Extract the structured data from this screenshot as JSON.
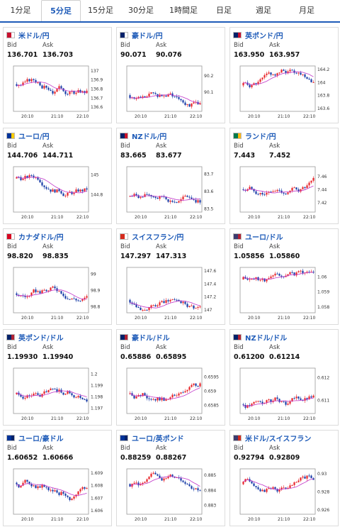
{
  "tabs": [
    "1分足",
    "5分足",
    "15分足",
    "30分足",
    "1時間足",
    "日足",
    "週足",
    "月足"
  ],
  "active_tab": 1,
  "labels": {
    "bid": "Bid",
    "ask": "Ask"
  },
  "times": [
    "20:10",
    "21:10",
    "22:10"
  ],
  "cards": [
    {
      "pair": "米ドル/円",
      "bid": "136.701",
      "ask": "136.703",
      "flag": [
        "#c8102e",
        "#ffffff"
      ],
      "ticks": [
        "137",
        "136.9",
        "136.8",
        "136.7",
        "136.6"
      ],
      "ylim": [
        136.55,
        137.05
      ],
      "start": 136.85
    },
    {
      "pair": "豪ドル/円",
      "bid": "90.071",
      "ask": "90.076",
      "flag": [
        "#012169",
        "#ffffff"
      ],
      "ticks": [
        "90.2",
        "90.1"
      ],
      "ylim": [
        89.98,
        90.26
      ],
      "start": 90.08
    },
    {
      "pair": "英ポンド/円",
      "bid": "163.950",
      "ask": "163.957",
      "flag": [
        "#012169",
        "#c8102e"
      ],
      "ticks": [
        "164.2",
        "164",
        "163.8",
        "163.6"
      ],
      "ylim": [
        163.55,
        164.25
      ],
      "start": 163.95
    },
    {
      "pair": "ユーロ/円",
      "bid": "144.706",
      "ask": "144.711",
      "flag": [
        "#003399",
        "#ffcc00"
      ],
      "ticks": [
        "145",
        "144.8"
      ],
      "ylim": [
        144.62,
        145.08
      ],
      "start": 144.96
    },
    {
      "pair": "NZドル/円",
      "bid": "83.665",
      "ask": "83.677",
      "flag": [
        "#012169",
        "#cc142b"
      ],
      "ticks": [
        "83.7",
        "83.6",
        "83.5"
      ],
      "ylim": [
        83.48,
        83.74
      ],
      "start": 83.57
    },
    {
      "pair": "ランド/円",
      "bid": "7.443",
      "ask": "7.452",
      "flag": [
        "#007a4d",
        "#ffb612"
      ],
      "ticks": [
        "7.46",
        "7.44",
        "7.42"
      ],
      "ylim": [
        7.405,
        7.475
      ],
      "start": 7.44
    },
    {
      "pair": "カナダドル/円",
      "bid": "98.820",
      "ask": "98.835",
      "flag": [
        "#d80621",
        "#ffffff"
      ],
      "ticks": [
        "99",
        "98.9",
        "98.8"
      ],
      "ylim": [
        98.76,
        99.04
      ],
      "start": 98.88
    },
    {
      "pair": "スイスフラン/円",
      "bid": "147.297",
      "ask": "147.313",
      "flag": [
        "#d52b1e",
        "#ffffff"
      ],
      "ticks": [
        "147.6",
        "147.4",
        "147.2",
        "147"
      ],
      "ylim": [
        146.95,
        147.65
      ],
      "start": 147.15
    },
    {
      "pair": "ユーロ/ドル",
      "bid": "1.05856",
      "ask": "1.05860",
      "flag": [
        "#3c3b6e",
        "#b22234"
      ],
      "ticks": [
        "1.06",
        "1.059",
        "1.058"
      ],
      "ylim": [
        1.0576,
        1.0606
      ],
      "start": 1.0598
    },
    {
      "pair": "英ポンド/ドル",
      "bid": "1.19930",
      "ask": "1.19940",
      "flag": [
        "#012169",
        "#b22234"
      ],
      "ticks": [
        "1.2",
        "1.199",
        "1.198",
        "1.197"
      ],
      "ylim": [
        1.1965,
        1.2005
      ],
      "start": 1.1982
    },
    {
      "pair": "豪ドル/ドル",
      "bid": "0.65886",
      "ask": "0.65895",
      "flag": [
        "#012169",
        "#b22234"
      ],
      "ticks": [
        "0.6595",
        "0.659",
        "0.6585"
      ],
      "ylim": [
        0.6582,
        0.6598
      ],
      "start": 0.6589
    },
    {
      "pair": "NZドル/ドル",
      "bid": "0.61200",
      "ask": "0.61214",
      "flag": [
        "#012169",
        "#b22234"
      ],
      "ticks": [
        "0.612",
        "0.611"
      ],
      "ylim": [
        0.6104,
        0.6124
      ],
      "start": 0.6108
    },
    {
      "pair": "ユーロ/豪ドル",
      "bid": "1.60652",
      "ask": "1.60666",
      "flag": [
        "#003399",
        "#012169"
      ],
      "ticks": [
        "1.609",
        "1.608",
        "1.607",
        "1.606"
      ],
      "ylim": [
        1.6057,
        1.6093
      ],
      "start": 1.6082
    },
    {
      "pair": "ユーロ/英ポンド",
      "bid": "0.88259",
      "ask": "0.88267",
      "flag": [
        "#003399",
        "#012169"
      ],
      "ticks": [
        "0.885",
        "0.884",
        "0.883"
      ],
      "ylim": [
        0.8824,
        0.8854
      ],
      "start": 0.8844
    },
    {
      "pair": "米ドル/スイスフラン",
      "bid": "0.92794",
      "ask": "0.92809",
      "flag": [
        "#3c3b6e",
        "#d52b1e"
      ],
      "ticks": [
        "0.93",
        "0.928",
        "0.926"
      ],
      "ylim": [
        0.9255,
        0.9305
      ],
      "start": 0.9288
    }
  ],
  "colors": {
    "up": "#e8262a",
    "down": "#1a3ea8",
    "ma": "#c034c8",
    "accent": "#1e5bb8"
  }
}
